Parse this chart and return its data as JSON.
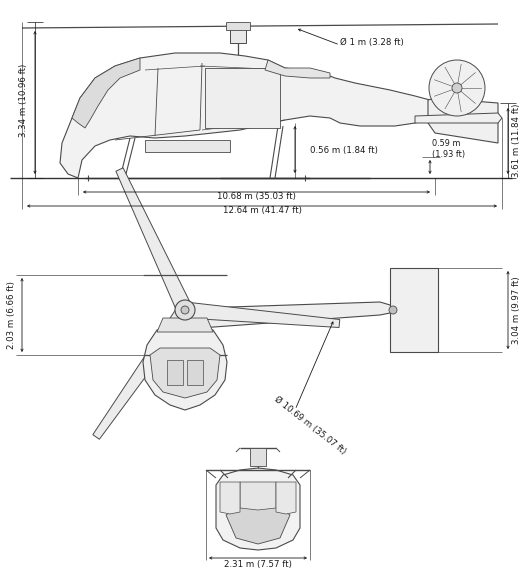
{
  "bg_color": "#ffffff",
  "line_color": "#4a4a4a",
  "dim_color": "#1a1a1a",
  "lw": 0.8,
  "fs": 6.2,
  "dims_side": {
    "height_total": "3.34 m (10.96 ft)",
    "height_tail": "3.61 m (11.84 ft)",
    "rotor_diam": "Ø 1 m (3.28 ft)",
    "fuselage_height": "0.56 m (1.84 ft)",
    "skid_height": "0.59 m\n(1.93 ft)",
    "length_fuselage": "10.68 m (35.03 ft)",
    "length_total": "12.64 m (41.47 ft)"
  },
  "dims_top": {
    "width_body": "2.03 m (6.66 ft)",
    "rotor_blade": "Ø 10.69 m (35.07 ft)",
    "tail_width": "3.04 m (9.97 ft)"
  },
  "dims_front": {
    "width": "2.31 m (7.57 ft)"
  }
}
